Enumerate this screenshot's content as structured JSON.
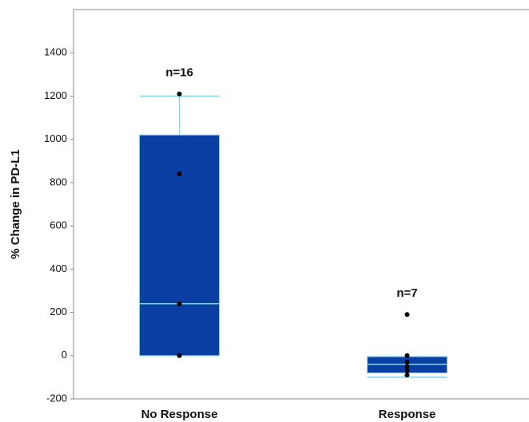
{
  "chart_data": {
    "type": "box",
    "y_label": "% Change in PD-L1",
    "categories": [
      "No Response",
      "Response"
    ],
    "annotations": [
      "n=16",
      "n=7"
    ],
    "boxes": [
      {
        "q1": 0,
        "median": 240,
        "q3": 1020,
        "whisker_low": 0,
        "whisker_high": 1200,
        "points": [
          1210,
          840,
          240,
          0
        ]
      },
      {
        "q1": -80,
        "median": -40,
        "q3": -5,
        "whisker_low": -100,
        "whisker_high": -5,
        "points": [
          190,
          0,
          -30,
          -50,
          -70,
          -90
        ]
      }
    ],
    "box_color": "#0b3ea3",
    "whisker_color": "#7fd3ea",
    "point_color": "#000000",
    "ylim": [
      -200,
      1600
    ],
    "yticks": [
      -200,
      0,
      200,
      400,
      600,
      800,
      1000,
      1200,
      1400
    ],
    "grid": false
  }
}
